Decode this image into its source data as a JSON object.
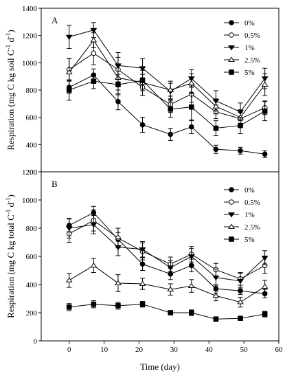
{
  "chart_data": [
    {
      "type": "line",
      "panel_label": "A",
      "ylabel": "Respiration (mg C kg soil C",
      "ylabel_sup": "-1",
      "ylabel_mid": " d",
      "ylabel_sup2": "-1",
      "ylabel_end": ")",
      "ylim": [
        200,
        1400
      ],
      "yticks": [
        200,
        400,
        600,
        800,
        1000,
        1200,
        1400
      ],
      "xlim": [
        -8,
        60
      ],
      "x": [
        0,
        7,
        14,
        21,
        29,
        35,
        42,
        49,
        56
      ],
      "legend_position": "top-right",
      "grid": false,
      "series": [
        {
          "name": "0%",
          "marker": "filled-circle",
          "values": [
            820,
            910,
            715,
            545,
            475,
            530,
            365,
            355,
            330
          ],
          "errors": [
            45,
            45,
            60,
            55,
            45,
            50,
            30,
            25,
            25
          ]
        },
        {
          "name": "0.5%",
          "marker": "open-circle",
          "values": [
            950,
            1070,
            950,
            820,
            695,
            770,
            640,
            590,
            670
          ],
          "errors": [
            80,
            85,
            90,
            60,
            60,
            60,
            50,
            45,
            50
          ]
        },
        {
          "name": "1%",
          "marker": "filled-triangle",
          "values": [
            1190,
            1240,
            980,
            960,
            790,
            885,
            720,
            640,
            885
          ],
          "errors": [
            85,
            55,
            95,
            70,
            60,
            65,
            75,
            65,
            75
          ]
        },
        {
          "name": "2.5%",
          "marker": "open-triangle",
          "values": [
            930,
            1165,
            890,
            855,
            800,
            850,
            680,
            600,
            840
          ],
          "errors": [
            100,
            55,
            90,
            60,
            65,
            70,
            55,
            55,
            80
          ]
        },
        {
          "name": "5%",
          "marker": "filled-square",
          "values": [
            800,
            865,
            840,
            870,
            660,
            675,
            520,
            540,
            645
          ],
          "errors": [
            75,
            55,
            75,
            75,
            60,
            100,
            55,
            60,
            70
          ]
        }
      ]
    },
    {
      "type": "line",
      "panel_label": "B",
      "ylabel": "Respiration (mg C kg total C",
      "ylabel_sup": "-1",
      "ylabel_mid": " d",
      "ylabel_sup2": "-1",
      "ylabel_end": ")",
      "ylim": [
        0,
        1200
      ],
      "yticks": [
        0,
        200,
        400,
        600,
        800,
        1000,
        1200
      ],
      "xlim": [
        -8,
        60
      ],
      "xticks": [
        0,
        10,
        20,
        30,
        40,
        50,
        60
      ],
      "xlabel": "Time (day)",
      "x": [
        0,
        7,
        14,
        21,
        29,
        35,
        42,
        49,
        56
      ],
      "legend_position": "top-right",
      "grid": false,
      "series": [
        {
          "name": "0%",
          "marker": "filled-circle",
          "values": [
            820,
            910,
            720,
            545,
            475,
            535,
            370,
            355,
            335
          ],
          "errors": [
            45,
            45,
            50,
            45,
            40,
            45,
            30,
            25,
            30
          ]
        },
        {
          "name": "0.5%",
          "marker": "open-circle",
          "values": [
            760,
            855,
            730,
            635,
            545,
            615,
            505,
            440,
            535
          ],
          "errors": [
            60,
            75,
            70,
            60,
            50,
            55,
            45,
            45,
            55
          ]
        },
        {
          "name": "1%",
          "marker": "filled-triangle",
          "values": [
            800,
            825,
            665,
            650,
            520,
            600,
            450,
            425,
            590
          ],
          "errors": [
            70,
            65,
            60,
            55,
            50,
            55,
            60,
            55,
            50
          ]
        },
        {
          "name": "2.5%",
          "marker": "open-triangle",
          "values": [
            430,
            535,
            410,
            405,
            365,
            390,
            320,
            275,
            385
          ],
          "errors": [
            50,
            50,
            60,
            40,
            40,
            45,
            35,
            35,
            45
          ]
        },
        {
          "name": "5%",
          "marker": "filled-square",
          "values": [
            240,
            260,
            250,
            260,
            200,
            200,
            155,
            160,
            190
          ],
          "errors": [
            25,
            25,
            25,
            20,
            15,
            20,
            15,
            15,
            20
          ]
        }
      ]
    }
  ]
}
